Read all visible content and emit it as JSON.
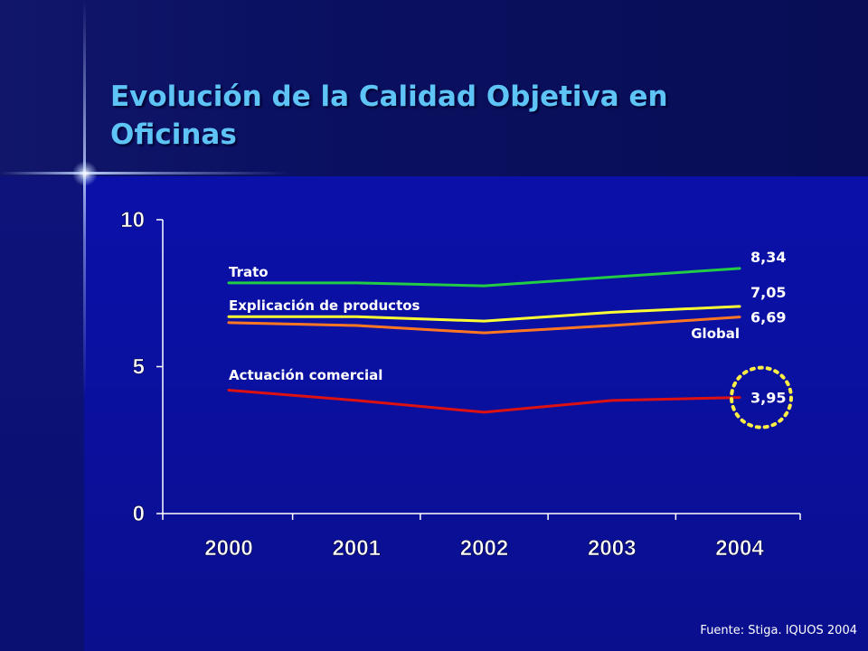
{
  "title": {
    "line1": "Evolución de la Calidad Objetiva en",
    "line2": "Oficinas"
  },
  "source": "Fuente: Stiga. IQUOS 2004",
  "chart_data": {
    "type": "line",
    "categories": [
      "2000",
      "2001",
      "2002",
      "2003",
      "2004"
    ],
    "ylim": [
      0,
      10
    ],
    "yticks": [
      "0",
      "5",
      "10"
    ],
    "grid": false,
    "series": [
      {
        "name": "Trato",
        "color": "#22cc44",
        "values": [
          7.85,
          7.85,
          7.75,
          8.05,
          8.34
        ],
        "end_label": "8,34"
      },
      {
        "name": "Explicación de productos",
        "color": "#ffff33",
        "values": [
          6.7,
          6.7,
          6.55,
          6.85,
          7.05
        ],
        "end_label": "7,05"
      },
      {
        "name": "Global",
        "color": "#ff7722",
        "values": [
          6.5,
          6.4,
          6.15,
          6.4,
          6.69
        ],
        "end_label": "6,69"
      },
      {
        "name": "Actuación comercial",
        "color": "#dd1111",
        "values": [
          4.2,
          3.85,
          3.45,
          3.85,
          3.95
        ],
        "end_label": "3,95"
      }
    ],
    "highlight": {
      "series": "Actuación comercial",
      "category": "2004",
      "color": "#ffee44"
    }
  }
}
